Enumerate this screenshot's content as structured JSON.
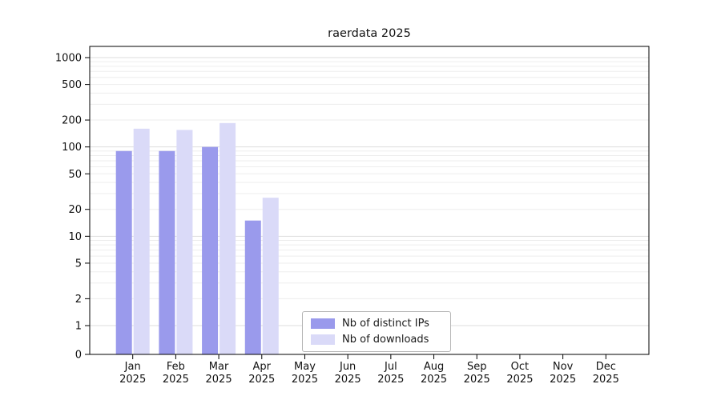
{
  "chart_data": {
    "type": "bar",
    "title": "raerdata 2025",
    "categories": [
      "Jan",
      "Feb",
      "Mar",
      "Apr",
      "May",
      "Jun",
      "Jul",
      "Aug",
      "Sep",
      "Oct",
      "Nov",
      "Dec"
    ],
    "year_label": "2025",
    "series": [
      {
        "name": "Nb of distinct IPs",
        "color": "#9a9aec",
        "values": [
          90,
          90,
          100,
          15,
          0,
          0,
          0,
          0,
          0,
          0,
          0,
          0
        ]
      },
      {
        "name": "Nb of downloads",
        "color": "#dadaf8",
        "values": [
          160,
          155,
          185,
          27,
          0,
          0,
          0,
          0,
          0,
          0,
          0,
          0
        ]
      }
    ],
    "yscale": "symlog",
    "yticks": [
      0,
      1,
      2,
      5,
      10,
      20,
      50,
      100,
      200,
      500,
      1000
    ],
    "ylim": [
      0,
      1300
    ],
    "xlabel": "",
    "ylabel": "",
    "grid": true,
    "legend_position": "lower-center"
  }
}
